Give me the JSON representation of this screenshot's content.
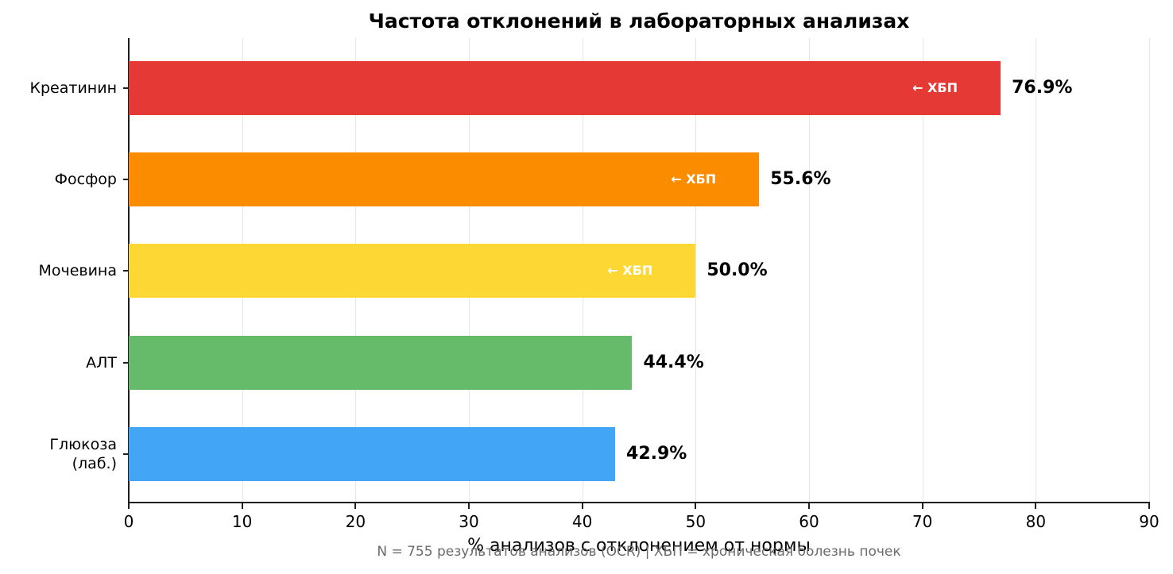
{
  "chart_data": {
    "type": "bar",
    "orientation": "horizontal",
    "title": "Частота отклонений в лабораторных анализах",
    "xlabel": "% анализов с отклонением от нормы",
    "ylabel": "",
    "xlim": [
      0,
      90
    ],
    "xticks": [
      0,
      10,
      20,
      30,
      40,
      50,
      60,
      70,
      80,
      90
    ],
    "grid": "vertical",
    "legend": null,
    "categories": [
      "Креатинин",
      "Фосфор",
      "Мочевина",
      "АЛТ",
      "Глюкоза\n(лаб.)"
    ],
    "values": [
      76.9,
      55.6,
      50.0,
      44.4,
      42.9
    ],
    "value_labels": [
      "76.9%",
      "55.6%",
      "50.0%",
      "44.4%",
      "42.9%"
    ],
    "colors": [
      "#e53935",
      "#fb8c00",
      "#fdd835",
      "#66bb6a",
      "#42a5f5"
    ],
    "annotations": [
      "← ХБП",
      "← ХБП",
      "← ХБП",
      "",
      ""
    ],
    "footnote": "N = 755 результатов анализов (OCR) | ХБП = хроническая болезнь почек"
  }
}
